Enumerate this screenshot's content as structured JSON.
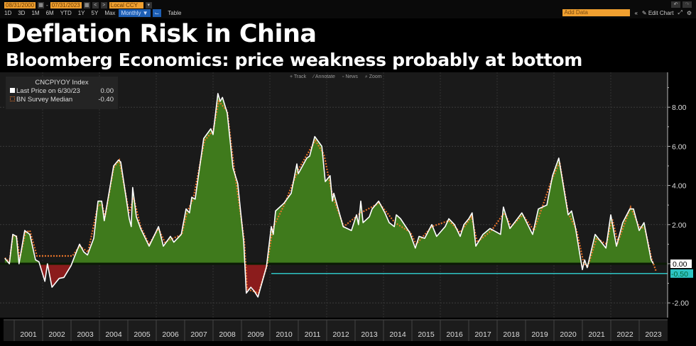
{
  "toolbar": {
    "start_date": "08/31/2000",
    "end_date": "07/31/2023",
    "date_separator": "-",
    "currency": "Local CCY",
    "prev": "<",
    "next": ">",
    "ranges": [
      "1D",
      "3D",
      "1M",
      "6M",
      "YTD",
      "1Y",
      "5Y",
      "Max"
    ],
    "frequency": "Monthly ▼",
    "table": "Table",
    "add_data_placeholder": "Add Data",
    "collapse": "«",
    "edit_chart": "Edit Chart",
    "undo": "↶",
    "redo": "↷"
  },
  "header": {
    "title": "Deflation Risk in China",
    "subtitle": "Bloomberg Economics: price weakness probably at bottom"
  },
  "chart_tools": [
    "+ Track",
    "⁄ Annotate",
    "▫ News",
    "⌕ Zoom"
  ],
  "legend": {
    "index": "CNCPIYOY Index",
    "last_price_label": "Last Price on 6/30/23",
    "last_price_value": "0.00",
    "survey_label": "BN Survey Median",
    "survey_value": "-0.40"
  },
  "colors": {
    "positive_fill": "#3f7a1c",
    "negative_fill": "#8b1c1c",
    "actual_line": "#ffffff",
    "survey_line": "#e8742a",
    "reference_line": "#2ec4c4",
    "background": "#1a1a1a"
  },
  "chart_data": {
    "type": "area",
    "title": "Deflation Risk in China",
    "subtitle": "Bloomberg Economics: price weakness probably at bottom",
    "xlabel": "",
    "ylabel": "",
    "ylim": [
      -2.9,
      9.4
    ],
    "xlim": [
      2000.6,
      2023.95
    ],
    "yticks": [
      8,
      6,
      4,
      2,
      0,
      -2
    ],
    "ytick_labels": [
      "8.00",
      "6.00",
      "4.00",
      "2.00",
      "",
      "-2.00"
    ],
    "xtick_labels": [
      "2001",
      "2002",
      "2003",
      "2004",
      "2005",
      "2006",
      "2007",
      "2008",
      "2009",
      "2010",
      "2011",
      "2012",
      "2013",
      "2014",
      "2015",
      "2016",
      "2017",
      "2018",
      "2019",
      "2020",
      "2021",
      "2022",
      "2023"
    ],
    "grid": true,
    "legend_position": "top-left",
    "series": [
      {
        "name": "CNCPIYOY Index (Last Price)",
        "points": [
          [
            2000.67,
            0.28
          ],
          [
            2000.83,
            0
          ],
          [
            2000.95,
            1.5
          ],
          [
            2001.08,
            1.4
          ],
          [
            2001.17,
            0
          ],
          [
            2001.37,
            1.7
          ],
          [
            2001.55,
            1.5
          ],
          [
            2001.75,
            0.2
          ],
          [
            2001.87,
            0.1
          ],
          [
            2002.08,
            -0.9
          ],
          [
            2002.17,
            0
          ],
          [
            2002.33,
            -1.2
          ],
          [
            2002.58,
            -0.75
          ],
          [
            2002.75,
            -0.7
          ],
          [
            2003.0,
            -0.1
          ],
          [
            2003.12,
            0.35
          ],
          [
            2003.3,
            1.0
          ],
          [
            2003.45,
            0.6
          ],
          [
            2003.58,
            0.45
          ],
          [
            2003.8,
            1.3
          ],
          [
            2003.95,
            3.2
          ],
          [
            2004.08,
            3.2
          ],
          [
            2004.17,
            2.2
          ],
          [
            2004.5,
            5.0
          ],
          [
            2004.67,
            5.3
          ],
          [
            2004.75,
            5.2
          ],
          [
            2005.05,
            2.3
          ],
          [
            2005.12,
            1.9
          ],
          [
            2005.17,
            3.9
          ],
          [
            2005.3,
            2.4
          ],
          [
            2005.45,
            1.8
          ],
          [
            2005.75,
            0.9
          ],
          [
            2006.08,
            1.9
          ],
          [
            2006.25,
            0.9
          ],
          [
            2006.5,
            1.4
          ],
          [
            2006.62,
            1.1
          ],
          [
            2006.88,
            1.5
          ],
          [
            2007.05,
            2.8
          ],
          [
            2007.17,
            2.6
          ],
          [
            2007.25,
            3.4
          ],
          [
            2007.37,
            3.3
          ],
          [
            2007.67,
            6.4
          ],
          [
            2007.92,
            6.9
          ],
          [
            2008.0,
            6.6
          ],
          [
            2008.17,
            8.7
          ],
          [
            2008.25,
            8.3
          ],
          [
            2008.33,
            8.5
          ],
          [
            2008.5,
            7.7
          ],
          [
            2008.7,
            4.9
          ],
          [
            2008.87,
            4.1
          ],
          [
            2009.08,
            1.1
          ],
          [
            2009.17,
            -1.5
          ],
          [
            2009.33,
            -1.2
          ],
          [
            2009.45,
            -1.4
          ],
          [
            2009.58,
            -1.7
          ],
          [
            2009.88,
            -0.15
          ],
          [
            2010.05,
            1.9
          ],
          [
            2010.12,
            1.5
          ],
          [
            2010.2,
            2.7
          ],
          [
            2010.5,
            3.1
          ],
          [
            2010.75,
            3.6
          ],
          [
            2010.95,
            5.1
          ],
          [
            2011.0,
            4.6
          ],
          [
            2011.3,
            5.4
          ],
          [
            2011.4,
            5.5
          ],
          [
            2011.58,
            6.5
          ],
          [
            2011.83,
            6.0
          ],
          [
            2011.95,
            4.2
          ],
          [
            2012.12,
            4.5
          ],
          [
            2012.2,
            3.2
          ],
          [
            2012.25,
            3.6
          ],
          [
            2012.58,
            1.9
          ],
          [
            2012.87,
            1.7
          ],
          [
            2013.05,
            2.5
          ],
          [
            2013.12,
            2.0
          ],
          [
            2013.2,
            3.2
          ],
          [
            2013.28,
            2.1
          ],
          [
            2013.5,
            2.4
          ],
          [
            2013.6,
            2.8
          ],
          [
            2013.83,
            3.2
          ],
          [
            2014.05,
            2.6
          ],
          [
            2014.2,
            2.1
          ],
          [
            2014.38,
            1.9
          ],
          [
            2014.45,
            2.5
          ],
          [
            2014.6,
            2.3
          ],
          [
            2014.92,
            1.6
          ],
          [
            2015.12,
            0.8
          ],
          [
            2015.25,
            1.4
          ],
          [
            2015.45,
            1.3
          ],
          [
            2015.7,
            2.0
          ],
          [
            2015.87,
            1.4
          ],
          [
            2016.17,
            1.9
          ],
          [
            2016.3,
            2.3
          ],
          [
            2016.5,
            2.0
          ],
          [
            2016.7,
            1.4
          ],
          [
            2016.83,
            2.0
          ],
          [
            2017.0,
            2.3
          ],
          [
            2017.12,
            2.6
          ],
          [
            2017.25,
            0.9
          ],
          [
            2017.5,
            1.5
          ],
          [
            2017.75,
            1.8
          ],
          [
            2018.12,
            1.5
          ],
          [
            2018.22,
            2.9
          ],
          [
            2018.45,
            1.8
          ],
          [
            2018.87,
            2.6
          ],
          [
            2019.25,
            1.5
          ],
          [
            2019.45,
            2.8
          ],
          [
            2019.75,
            3.0
          ],
          [
            2019.95,
            4.5
          ],
          [
            2020.17,
            5.4
          ],
          [
            2020.5,
            2.5
          ],
          [
            2020.62,
            2.7
          ],
          [
            2020.75,
            1.9
          ],
          [
            2021.0,
            -0.3
          ],
          [
            2021.08,
            0.2
          ],
          [
            2021.17,
            -0.2
          ],
          [
            2021.45,
            1.5
          ],
          [
            2021.83,
            0.8
          ],
          [
            2022.0,
            2.5
          ],
          [
            2022.2,
            0.9
          ],
          [
            2022.42,
            2.1
          ],
          [
            2022.67,
            2.8
          ],
          [
            2022.8,
            2.8
          ],
          [
            2023.0,
            1.7
          ],
          [
            2023.17,
            2.1
          ],
          [
            2023.42,
            0.2
          ],
          [
            2023.5,
            0.0
          ]
        ]
      },
      {
        "name": "BN Survey Median",
        "points": [
          [
            2000.67,
            0.3
          ],
          [
            2000.83,
            0.1
          ],
          [
            2000.95,
            1.4
          ],
          [
            2001.08,
            1.4
          ],
          [
            2001.2,
            0.3
          ],
          [
            2001.4,
            1.6
          ],
          [
            2001.55,
            1.7
          ],
          [
            2001.8,
            0.4
          ],
          [
            2003.05,
            0.4
          ],
          [
            2003.3,
            0.9
          ],
          [
            2003.6,
            0.6
          ],
          [
            2003.95,
            3.0
          ],
          [
            2004.1,
            3.0
          ],
          [
            2004.2,
            2.4
          ],
          [
            2004.5,
            4.9
          ],
          [
            2004.7,
            5.3
          ],
          [
            2005.05,
            2.6
          ],
          [
            2005.2,
            3.4
          ],
          [
            2005.45,
            1.9
          ],
          [
            2005.75,
            1.0
          ],
          [
            2006.08,
            1.8
          ],
          [
            2006.3,
            1.1
          ],
          [
            2006.9,
            1.5
          ],
          [
            2007.1,
            2.7
          ],
          [
            2007.3,
            3.3
          ],
          [
            2007.7,
            6.3
          ],
          [
            2008.0,
            6.8
          ],
          [
            2008.2,
            8.3
          ],
          [
            2008.5,
            7.8
          ],
          [
            2008.75,
            4.8
          ],
          [
            2009.1,
            1.2
          ],
          [
            2009.2,
            -1.3
          ],
          [
            2009.6,
            -1.5
          ],
          [
            2009.9,
            -0.1
          ],
          [
            2010.1,
            1.8
          ],
          [
            2010.5,
            3.0
          ],
          [
            2011.0,
            4.8
          ],
          [
            2011.6,
            6.3
          ],
          [
            2011.9,
            5.6
          ],
          [
            2012.2,
            3.5
          ],
          [
            2012.6,
            1.9
          ],
          [
            2013.2,
            2.6
          ],
          [
            2013.85,
            3.1
          ],
          [
            2014.4,
            2.1
          ],
          [
            2014.95,
            1.6
          ],
          [
            2015.15,
            1.0
          ],
          [
            2015.7,
            1.9
          ],
          [
            2016.3,
            2.2
          ],
          [
            2016.7,
            1.6
          ],
          [
            2017.1,
            2.4
          ],
          [
            2017.3,
            1.1
          ],
          [
            2017.8,
            1.7
          ],
          [
            2018.25,
            2.6
          ],
          [
            2018.5,
            1.9
          ],
          [
            2018.9,
            2.5
          ],
          [
            2019.3,
            1.7
          ],
          [
            2019.9,
            4.2
          ],
          [
            2020.2,
            5.2
          ],
          [
            2020.5,
            2.6
          ],
          [
            2020.8,
            1.7
          ],
          [
            2021.05,
            0
          ],
          [
            2021.2,
            -0.1
          ],
          [
            2021.5,
            1.3
          ],
          [
            2021.85,
            1.0
          ],
          [
            2022.05,
            2.3
          ],
          [
            2022.25,
            1.1
          ],
          [
            2022.7,
            2.9
          ],
          [
            2023.0,
            1.9
          ],
          [
            2023.2,
            1.8
          ],
          [
            2023.45,
            0.2
          ],
          [
            2023.6,
            -0.4
          ]
        ]
      }
    ],
    "reference_line": {
      "value": -0.5,
      "start": 2010.05,
      "label": "-0.50"
    },
    "last_value_label": "0.00"
  }
}
